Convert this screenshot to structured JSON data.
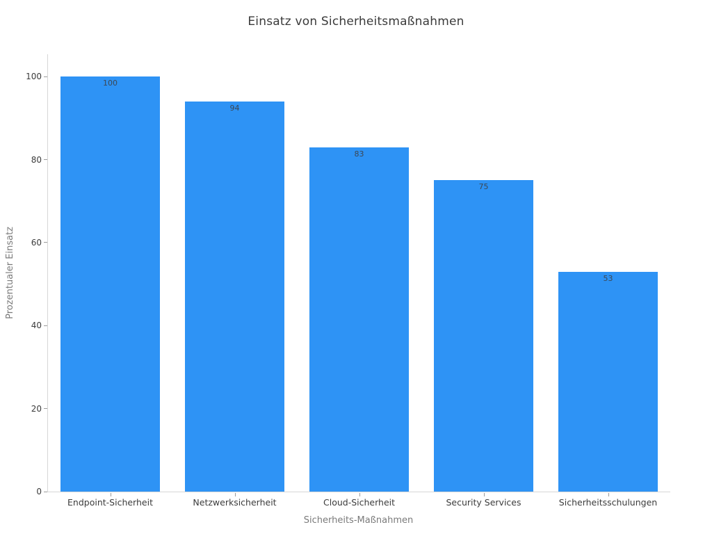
{
  "chart_data": {
    "type": "bar",
    "title": "Einsatz von Sicherheitsmaßnahmen",
    "xlabel": "Sicherheits-Maßnahmen",
    "ylabel": "Prozentualer Einsatz",
    "categories": [
      "Endpoint-Sicherheit",
      "Netzwerksicherheit",
      "Cloud-Sicherheit",
      "Security Services",
      "Sicherheitsschulungen"
    ],
    "values": [
      100,
      94,
      83,
      75,
      53
    ],
    "value_labels": [
      "100",
      "94",
      "83",
      "75",
      "53"
    ],
    "yticks": [
      0,
      20,
      40,
      60,
      80,
      100
    ],
    "ylim": [
      0,
      105.4
    ],
    "grid": false,
    "legend": null,
    "bar_color": "#2e93f5",
    "spine_color": "#d6d6d6",
    "tick_color": "#9a9a9a",
    "title_color": "#3a3a3a",
    "tick_label_color": "#3b3b3b",
    "axis_title_color": "#7a7a7a",
    "value_label_color": "#3d4753"
  }
}
